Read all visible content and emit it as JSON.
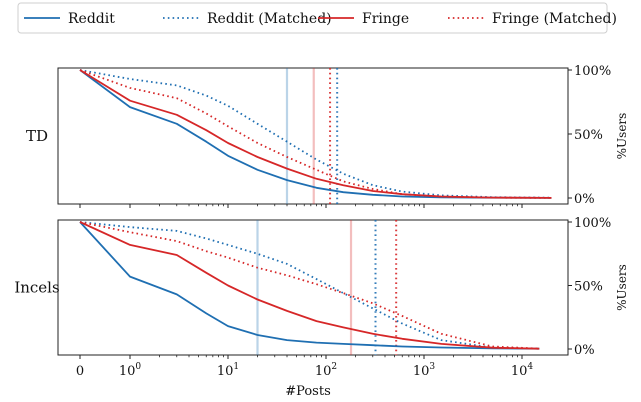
{
  "legend": {
    "placement": "top-center",
    "entries": [
      {
        "label": "Reddit",
        "color": "#1f6fb2",
        "style": "solid"
      },
      {
        "label": "Reddit (Matched)",
        "color": "#1f6fb2",
        "style": "dotted"
      },
      {
        "label": "Fringe",
        "color": "#d62728",
        "style": "solid"
      },
      {
        "label": "Fringe (Matched)",
        "color": "#d62728",
        "style": "dotted"
      }
    ]
  },
  "chart_data": [
    {
      "type": "line",
      "panel_label": "TD",
      "xlabel": "",
      "ylabel": "%Users",
      "x_scale": "symlog",
      "ylim": [
        0,
        100
      ],
      "yticks": [
        "0%",
        "50%",
        "100%"
      ],
      "grid": false,
      "series": [
        {
          "name": "Reddit",
          "color": "#1f6fb2",
          "style": "solid",
          "points": [
            [
              0,
              100
            ],
            [
              1,
              71
            ],
            [
              3,
              58
            ],
            [
              6,
              44
            ],
            [
              10,
              33
            ],
            [
              20,
              22
            ],
            [
              40,
              14
            ],
            [
              80,
              8
            ],
            [
              150,
              4.5
            ],
            [
              300,
              2.5
            ],
            [
              600,
              1.2
            ],
            [
              1500,
              0.5
            ],
            [
              5000,
              0.2
            ],
            [
              20000,
              0.1
            ]
          ]
        },
        {
          "name": "Reddit (Matched)",
          "color": "#1f6fb2",
          "style": "dotted",
          "points": [
            [
              0,
              100
            ],
            [
              1,
              93
            ],
            [
              3,
              88
            ],
            [
              6,
              80
            ],
            [
              10,
              72
            ],
            [
              20,
              58
            ],
            [
              40,
              44
            ],
            [
              80,
              30
            ],
            [
              150,
              19
            ],
            [
              300,
              10
            ],
            [
              600,
              5
            ],
            [
              1500,
              2
            ],
            [
              5000,
              0.6
            ],
            [
              20000,
              0.2
            ]
          ]
        },
        {
          "name": "Fringe",
          "color": "#d62728",
          "style": "solid",
          "points": [
            [
              0,
              100
            ],
            [
              1,
              76
            ],
            [
              3,
              65
            ],
            [
              6,
              53
            ],
            [
              10,
              43
            ],
            [
              20,
              32
            ],
            [
              40,
              23
            ],
            [
              80,
              15
            ],
            [
              150,
              10
            ],
            [
              300,
              5.5
            ],
            [
              600,
              3
            ],
            [
              1500,
              1.2
            ],
            [
              5000,
              0.3
            ],
            [
              20000,
              0.1
            ]
          ]
        },
        {
          "name": "Fringe (Matched)",
          "color": "#d62728",
          "style": "dotted",
          "points": [
            [
              0,
              100
            ],
            [
              1,
              86
            ],
            [
              3,
              78
            ],
            [
              6,
              66
            ],
            [
              10,
              56
            ],
            [
              20,
              43
            ],
            [
              40,
              32
            ],
            [
              80,
              22
            ],
            [
              150,
              13
            ],
            [
              300,
              7
            ],
            [
              600,
              3
            ],
            [
              1500,
              1
            ],
            [
              5000,
              0.3
            ],
            [
              20000,
              0.1
            ]
          ]
        }
      ],
      "vertical_markers": [
        {
          "x": 40,
          "color": "#1f6fb2",
          "style": "solid",
          "faint": true
        },
        {
          "x": 75,
          "color": "#d62728",
          "style": "solid",
          "faint": true
        },
        {
          "x": 110,
          "color": "#d62728",
          "style": "dotted",
          "faint": false
        },
        {
          "x": 130,
          "color": "#1f6fb2",
          "style": "dotted",
          "faint": false
        }
      ]
    },
    {
      "type": "line",
      "panel_label": "Incels",
      "xlabel": "#Posts",
      "ylabel": "%Users",
      "x_scale": "symlog",
      "ylim": [
        0,
        100
      ],
      "yticks": [
        "0%",
        "50%",
        "100%"
      ],
      "xticks": [
        "0",
        "10⁰",
        "10¹",
        "10²",
        "10³",
        "10⁴"
      ],
      "grid": false,
      "series": [
        {
          "name": "Reddit",
          "color": "#1f6fb2",
          "style": "solid",
          "points": [
            [
              0,
              100
            ],
            [
              1,
              57
            ],
            [
              3,
              43
            ],
            [
              6,
              28
            ],
            [
              10,
              18
            ],
            [
              20,
              11
            ],
            [
              40,
              7
            ],
            [
              80,
              5
            ],
            [
              150,
              4
            ],
            [
              300,
              3
            ],
            [
              600,
              2
            ],
            [
              1500,
              1.2
            ],
            [
              5000,
              0.5
            ],
            [
              15000,
              0.2
            ]
          ]
        },
        {
          "name": "Reddit (Matched)",
          "color": "#1f6fb2",
          "style": "dotted",
          "points": [
            [
              0,
              100
            ],
            [
              1,
              96
            ],
            [
              3,
              93
            ],
            [
              6,
              87
            ],
            [
              10,
              82
            ],
            [
              20,
              75
            ],
            [
              40,
              67
            ],
            [
              80,
              55
            ],
            [
              150,
              44
            ],
            [
              300,
              32
            ],
            [
              600,
              20
            ],
            [
              1500,
              7
            ],
            [
              5000,
              1
            ],
            [
              15000,
              0.2
            ]
          ]
        },
        {
          "name": "Fringe",
          "color": "#d62728",
          "style": "solid",
          "points": [
            [
              0,
              100
            ],
            [
              1,
              82
            ],
            [
              3,
              74
            ],
            [
              6,
              60
            ],
            [
              10,
              50
            ],
            [
              20,
              39
            ],
            [
              40,
              30
            ],
            [
              80,
              22
            ],
            [
              150,
              17
            ],
            [
              300,
              12
            ],
            [
              600,
              8
            ],
            [
              1500,
              4
            ],
            [
              5000,
              1
            ],
            [
              15000,
              0.2
            ]
          ]
        },
        {
          "name": "Fringe (Matched)",
          "color": "#d62728",
          "style": "dotted",
          "points": [
            [
              0,
              100
            ],
            [
              1,
              92
            ],
            [
              3,
              85
            ],
            [
              6,
              77
            ],
            [
              10,
              72
            ],
            [
              20,
              64
            ],
            [
              40,
              58
            ],
            [
              80,
              51
            ],
            [
              150,
              44
            ],
            [
              300,
              36
            ],
            [
              600,
              26
            ],
            [
              1500,
              12
            ],
            [
              5000,
              2
            ],
            [
              15000,
              0.3
            ]
          ]
        }
      ],
      "vertical_markers": [
        {
          "x": 20,
          "color": "#1f6fb2",
          "style": "solid",
          "faint": true
        },
        {
          "x": 180,
          "color": "#d62728",
          "style": "solid",
          "faint": true
        },
        {
          "x": 320,
          "color": "#1f6fb2",
          "style": "dotted",
          "faint": false
        },
        {
          "x": 520,
          "color": "#d62728",
          "style": "dotted",
          "faint": false
        }
      ]
    }
  ]
}
